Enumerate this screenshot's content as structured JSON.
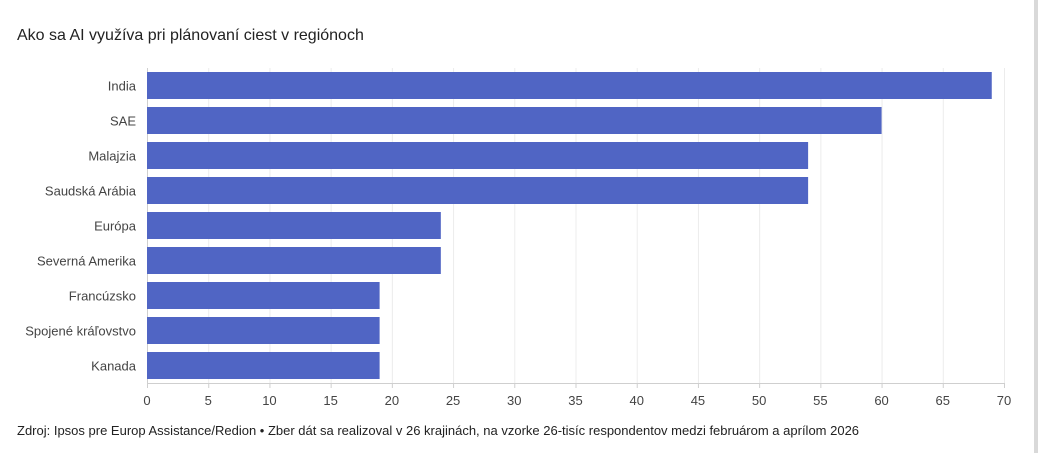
{
  "header": {
    "title": "Ako sa AI využíva pri plánovaní ciest v regiónoch"
  },
  "footer": {
    "source": "Zdroj: Ipsos pre Europ Assistance/Redion • Zber dát sa realizoval v 26 krajinách, na vzorke 26-tisíc respondentov medzi februárom a aprílom 2026"
  },
  "chart_data": {
    "type": "bar",
    "orientation": "horizontal",
    "categories": [
      "India",
      "SAE",
      "Malajzia",
      "Saudská Arábia",
      "Európa",
      "Severná Amerika",
      "Francúzsko",
      "Spojené kráľovstvo",
      "Kanada"
    ],
    "values": [
      69,
      60,
      54,
      54,
      24,
      24,
      19,
      19,
      19
    ],
    "xlim": [
      0,
      70
    ],
    "xticks": [
      0,
      5,
      10,
      15,
      20,
      25,
      30,
      35,
      40,
      45,
      50,
      55,
      60,
      65,
      70
    ],
    "grid": true,
    "bar_color": "#5065c4",
    "title": "",
    "xlabel": "",
    "ylabel": ""
  }
}
